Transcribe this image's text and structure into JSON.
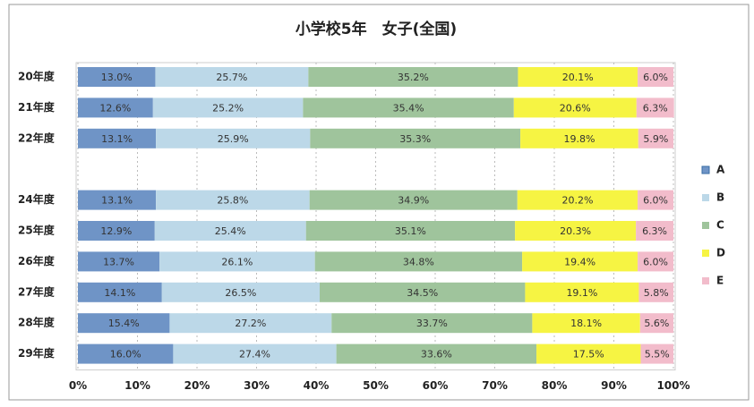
{
  "chart_data": {
    "type": "stacked-barh",
    "title": "小学校5年　女子(全国)",
    "categories": [
      "20年度",
      "21年度",
      "22年度",
      null,
      "24年度",
      "25年度",
      "26年度",
      "27年度",
      "28年度",
      "29年度"
    ],
    "series": [
      {
        "name": "A",
        "color": "#6f94c6",
        "values": [
          13.0,
          12.6,
          13.1,
          null,
          13.1,
          12.9,
          13.7,
          14.1,
          15.4,
          16.0
        ],
        "value_labels": [
          "13.0%",
          "12.6%",
          "13.1%",
          null,
          "13.1%",
          "12.9%",
          "13.7%",
          "14.1%",
          "15.4%",
          "16.0%"
        ]
      },
      {
        "name": "B",
        "color": "#bcd8e8",
        "values": [
          25.7,
          25.2,
          25.9,
          null,
          25.8,
          25.4,
          26.1,
          26.5,
          27.2,
          27.4
        ],
        "value_labels": [
          "25.7%",
          "25.2%",
          "25.9%",
          null,
          "25.8%",
          "25.4%",
          "26.1%",
          "26.5%",
          "27.2%",
          "27.4%"
        ]
      },
      {
        "name": "C",
        "color": "#9fc49c",
        "values": [
          35.2,
          35.4,
          35.3,
          null,
          34.9,
          35.1,
          34.8,
          34.5,
          33.7,
          33.6
        ],
        "value_labels": [
          "35.2%",
          "35.4%",
          "35.3%",
          null,
          "34.9%",
          "35.1%",
          "34.8%",
          "34.5%",
          "33.7%",
          "33.6%"
        ]
      },
      {
        "name": "D",
        "color": "#f6f443",
        "values": [
          20.1,
          20.6,
          19.8,
          null,
          20.2,
          20.3,
          19.4,
          19.1,
          18.1,
          17.5
        ],
        "value_labels": [
          "20.1%",
          "20.6%",
          "19.8%",
          null,
          "20.2%",
          "20.3%",
          "19.4%",
          "19.1%",
          "18.1%",
          "17.5%"
        ]
      },
      {
        "name": "E",
        "color": "#f2bccb",
        "values": [
          6.0,
          6.3,
          5.9,
          null,
          6.0,
          6.3,
          6.0,
          5.8,
          5.6,
          5.5
        ],
        "value_labels": [
          "6.0%",
          "6.3%",
          "5.9%",
          null,
          "6.0%",
          "6.3%",
          "6.0%",
          "5.8%",
          "5.6%",
          "5.5%"
        ]
      }
    ],
    "xlim": [
      0,
      100
    ],
    "xticks": [
      {
        "value": 0,
        "label": "0%"
      },
      {
        "value": 10,
        "label": "10%"
      },
      {
        "value": 20,
        "label": "20%"
      },
      {
        "value": 30,
        "label": "30%"
      },
      {
        "value": 40,
        "label": "40%"
      },
      {
        "value": 50,
        "label": "50%"
      },
      {
        "value": 60,
        "label": "60%"
      },
      {
        "value": 70,
        "label": "70%"
      },
      {
        "value": 80,
        "label": "80%"
      },
      {
        "value": 90,
        "label": "90%"
      },
      {
        "value": 100,
        "label": "100%"
      }
    ],
    "grid": true,
    "legend": "right"
  }
}
